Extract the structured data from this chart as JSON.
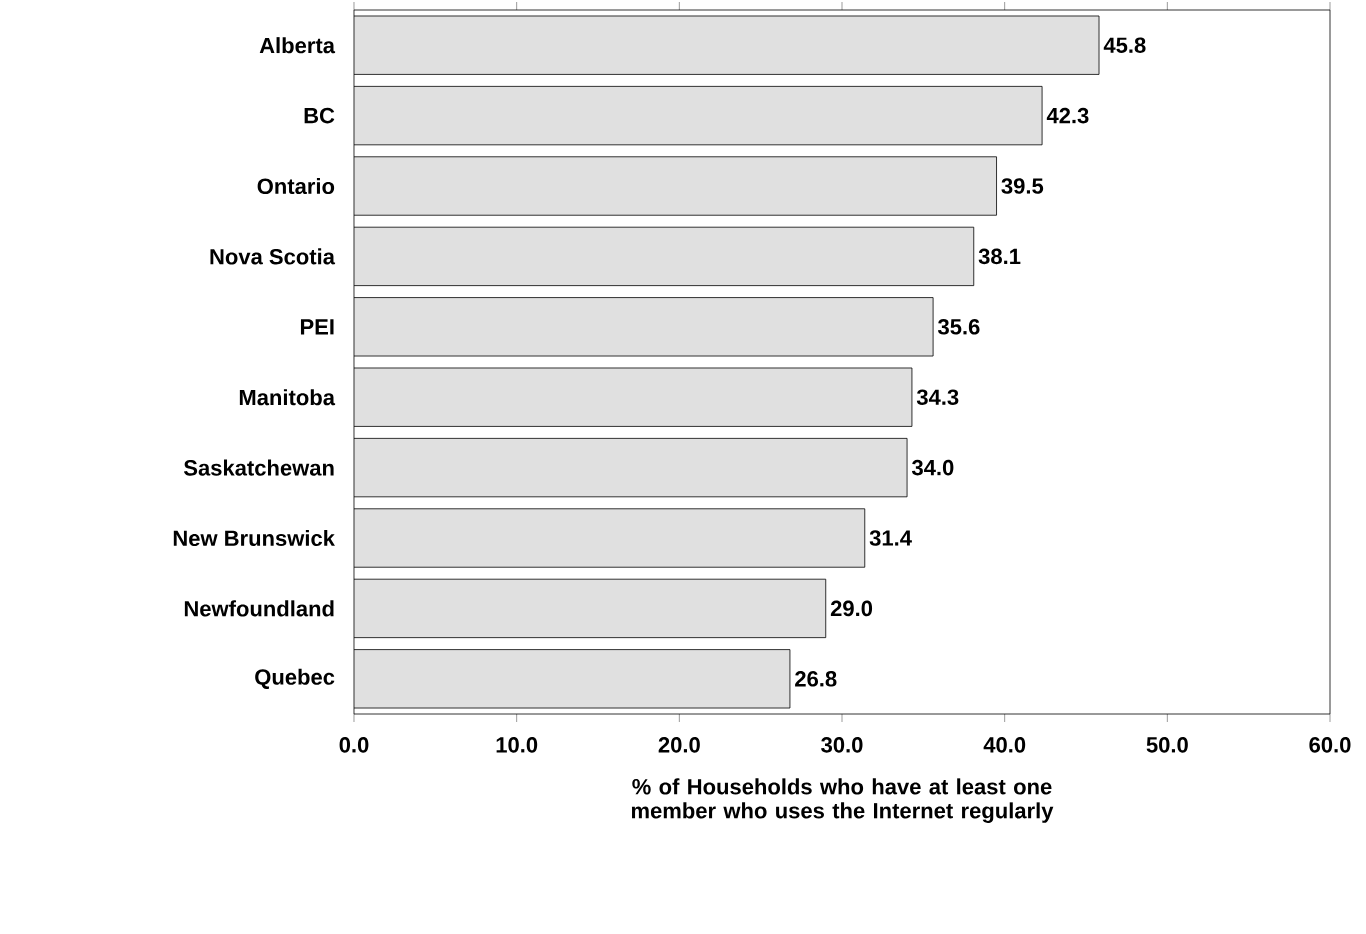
{
  "chart_data": {
    "type": "bar",
    "orientation": "horizontal",
    "categories": [
      "Alberta",
      "BC",
      "Ontario",
      "Nova Scotia",
      "PEI",
      "Manitoba",
      "Saskatchewan",
      "New Brunswick",
      "Newfoundland",
      "Quebec"
    ],
    "values": [
      45.8,
      42.3,
      39.5,
      38.1,
      35.6,
      34.3,
      34.0,
      31.4,
      29.0,
      26.8
    ],
    "value_labels": [
      "45.8",
      "42.3",
      "39.5",
      "38.1",
      "35.6",
      "34.3",
      "34.0",
      "31.4",
      "29.0",
      "26.8"
    ],
    "color": "#e0e0e0",
    "xlim": [
      0,
      60
    ],
    "xticks": [
      {
        "value": 0,
        "label": "0.0"
      },
      {
        "value": 10,
        "label": "10.0"
      },
      {
        "value": 20,
        "label": "20.0"
      },
      {
        "value": 30,
        "label": "30.0"
      },
      {
        "value": 40,
        "label": "40.0"
      },
      {
        "value": 50,
        "label": "50.0"
      },
      {
        "value": 60,
        "label": "60.0"
      }
    ],
    "xlabel": "% of Households who have at least one member who uses the Internet regularly",
    "grid": false
  }
}
